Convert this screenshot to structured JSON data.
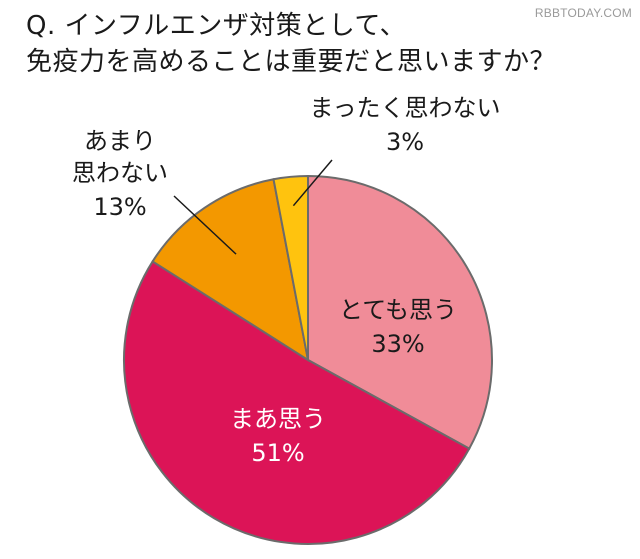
{
  "header": {
    "title_line1": "Q. インフルエンザ対策として、",
    "title_line2": "免疫力を高めることは重要だと思いますか？",
    "watermark": "RBBTODAY.COM"
  },
  "colors": {
    "totemo": "#f08c98",
    "maa": "#dc1457",
    "amari": "#f39800",
    "mattaku": "#ffc30e",
    "outline": "#6b6b6b"
  },
  "chart_data": {
    "type": "pie",
    "title": "Q. インフルエンザ対策として、免疫力を高めることは重要だと思いますか？",
    "start": "12 o'clock, clockwise",
    "slices": [
      {
        "label": "とても思う",
        "value": 33,
        "value_label": "33%"
      },
      {
        "label": "まあ思う",
        "value": 51,
        "value_label": "51%"
      },
      {
        "label": "あまり思わない",
        "label_lines": [
          "あまり",
          "思わない"
        ],
        "value": 13,
        "value_label": "13%"
      },
      {
        "label": "まったく思わない",
        "value": 3,
        "value_label": "3%"
      }
    ]
  }
}
